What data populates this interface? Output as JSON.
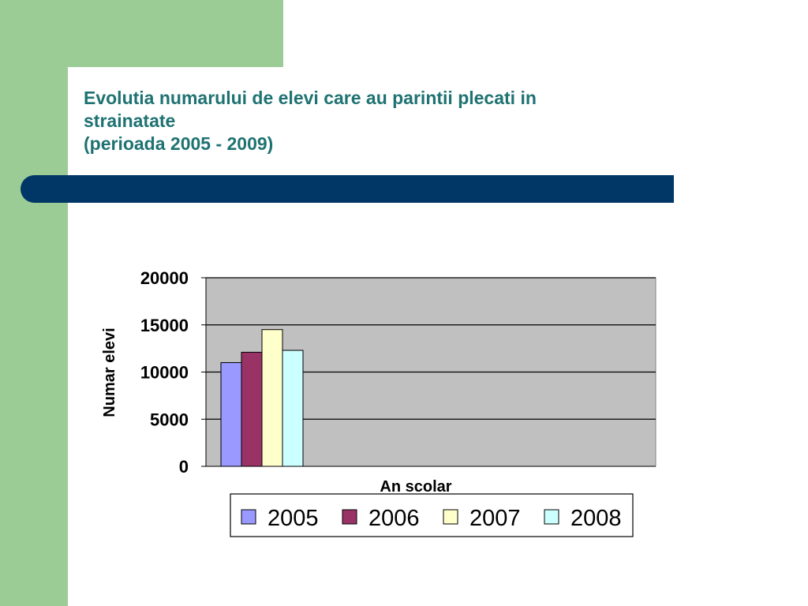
{
  "slide": {
    "title_lines": [
      "Evolutia numarului de elevi care au parintii plecati in",
      "strainatate",
      "(perioada 2005 - 2009)"
    ]
  },
  "colors": {
    "green": "#9ccc96",
    "title_text": "#1f7272",
    "title_bar": "#003767",
    "plot_background": "#c0c0c0"
  },
  "chart_data": {
    "type": "bar",
    "title": "",
    "xlabel": "An scolar",
    "ylabel": "Numar elevi",
    "ylim": [
      0,
      20000
    ],
    "y_ticks": [
      "0",
      "5000",
      "10000",
      "15000",
      "20000"
    ],
    "grid": true,
    "legend_position": "bottom",
    "categories": [
      ""
    ],
    "series": [
      {
        "name": "2005",
        "values": [
          11000
        ],
        "color": "#9999ff"
      },
      {
        "name": "2006",
        "values": [
          12100
        ],
        "color": "#993366"
      },
      {
        "name": "2007",
        "values": [
          14500
        ],
        "color": "#ffffcc"
      },
      {
        "name": "2008",
        "values": [
          12300
        ],
        "color": "#ccffff"
      }
    ]
  }
}
